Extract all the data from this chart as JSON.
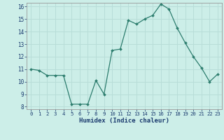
{
  "x": [
    0,
    1,
    2,
    3,
    4,
    5,
    6,
    7,
    8,
    9,
    10,
    11,
    12,
    13,
    14,
    15,
    16,
    17,
    18,
    19,
    20,
    21,
    22,
    23
  ],
  "y": [
    11.0,
    10.9,
    10.5,
    10.5,
    10.5,
    8.2,
    8.2,
    8.2,
    10.1,
    9.0,
    12.5,
    12.6,
    14.9,
    14.6,
    15.0,
    15.3,
    16.2,
    15.8,
    14.3,
    13.1,
    12.0,
    11.1,
    10.0,
    10.6
  ],
  "xlabel": "Humidex (Indice chaleur)",
  "ylim": [
    7.8,
    16.3
  ],
  "xlim": [
    -0.5,
    23.5
  ],
  "yticks": [
    8,
    9,
    10,
    11,
    12,
    13,
    14,
    15,
    16
  ],
  "xticks": [
    0,
    1,
    2,
    3,
    4,
    5,
    6,
    7,
    8,
    9,
    10,
    11,
    12,
    13,
    14,
    15,
    16,
    17,
    18,
    19,
    20,
    21,
    22,
    23
  ],
  "line_color": "#2d7d6e",
  "marker_color": "#2d7d6e",
  "bg_color": "#cceee8",
  "grid_color": "#b8ddd8",
  "tick_color": "#1a3a6e",
  "label_color": "#1a3a6e"
}
